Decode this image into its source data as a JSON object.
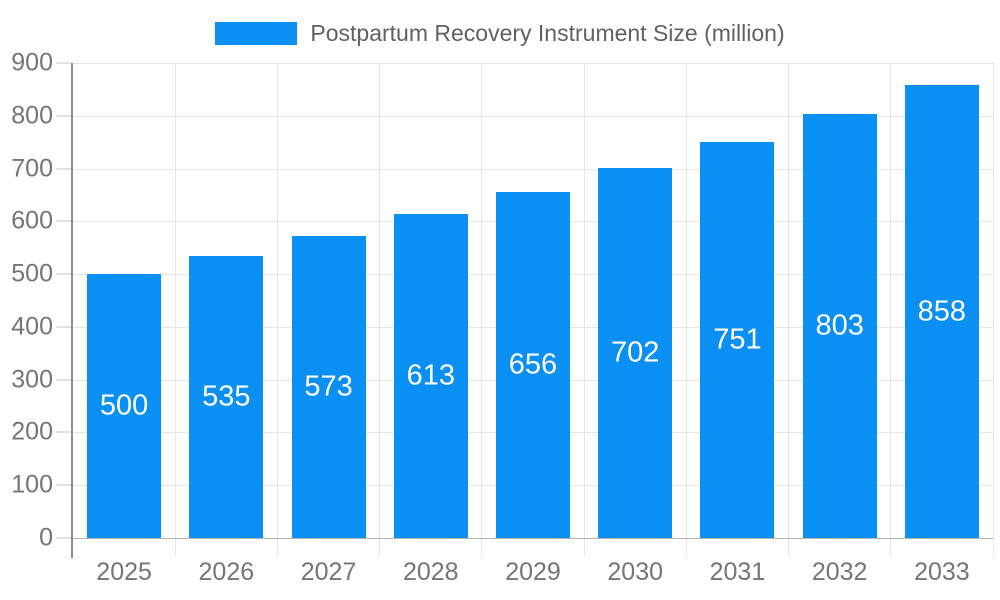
{
  "chart_data": {
    "type": "bar",
    "title": "Postpartum Recovery Instrument Size (million)",
    "categories": [
      "2025",
      "2026",
      "2027",
      "2028",
      "2029",
      "2030",
      "2031",
      "2032",
      "2033"
    ],
    "values": [
      500,
      535,
      573,
      613,
      656,
      702,
      751,
      803,
      858
    ],
    "ylim": [
      0,
      900
    ],
    "ytick_interval": 100,
    "ytick_labels": [
      "0",
      "100",
      "200",
      "300",
      "400",
      "500",
      "600",
      "700",
      "800",
      "900"
    ],
    "grid": true,
    "legend_position": "top-center",
    "colors": {
      "bar": "#0a8ff2",
      "value_label": "#ffffff",
      "axis_label": "#757575",
      "legend_text": "#616161",
      "gridline": "#e6e6e6",
      "baseline": "#b3b3b3",
      "axis_line": "#8f8f8f"
    }
  }
}
